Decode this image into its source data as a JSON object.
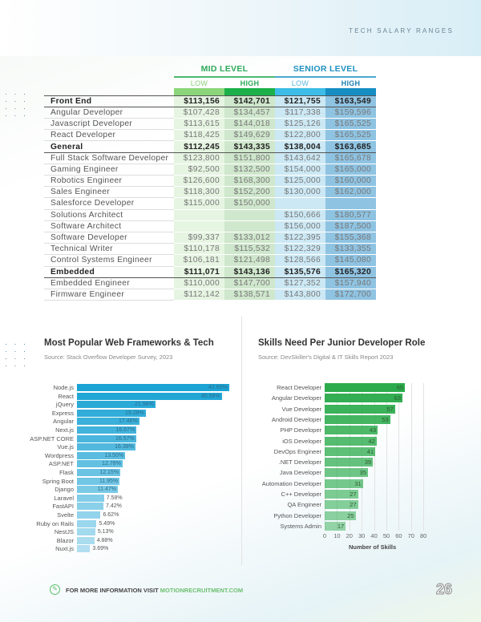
{
  "header": {
    "section": "TECH SALARY RANGES"
  },
  "table": {
    "groups": [
      "MID LEVEL",
      "SENIOR LEVEL"
    ],
    "subheaders": [
      "LOW",
      "HIGH",
      "LOW",
      "HIGH"
    ],
    "rows": [
      {
        "label": "Front End",
        "cat": true,
        "v": [
          "$113,156",
          "$142,701",
          "$121,755",
          "$163,549"
        ]
      },
      {
        "label": "Angular Developer",
        "v": [
          "$107,428",
          "$134,457",
          "$117,338",
          "$159,596"
        ]
      },
      {
        "label": "Javascript Developer",
        "v": [
          "$113,615",
          "$144,018",
          "$125,126",
          "$165,525"
        ]
      },
      {
        "label": "React Developer",
        "v": [
          "$118,425",
          "$149,629",
          "$122,800",
          "$165,525"
        ]
      },
      {
        "label": "General",
        "cat": true,
        "v": [
          "$112,245",
          "$143,335",
          "$138,004",
          "$163,685"
        ]
      },
      {
        "label": "Full Stack Software Developer",
        "v": [
          "$123,800",
          "$151,800",
          "$143,642",
          "$165,678"
        ]
      },
      {
        "label": "Gaming Engineer",
        "v": [
          "$92,500",
          "$132,500",
          "$154,000",
          "$165,000"
        ]
      },
      {
        "label": "Robotics Engineer",
        "v": [
          "$126,600",
          "$168,300",
          "$125,000",
          "$160,000"
        ]
      },
      {
        "label": "Sales Engineer",
        "v": [
          "$118,300",
          "$152,200",
          "$130,000",
          "$162,000"
        ]
      },
      {
        "label": "Salesforce Developer",
        "v": [
          "$115,000",
          "$150,000",
          "",
          ""
        ]
      },
      {
        "label": "Solutions Architect",
        "v": [
          "",
          "",
          "$150,666",
          "$180,577"
        ]
      },
      {
        "label": "Software Architect",
        "v": [
          "",
          "",
          "$156,000",
          "$187,500"
        ]
      },
      {
        "label": "Software Developer",
        "v": [
          "$99,337",
          "$133,012",
          "$122,395",
          "$155,368"
        ]
      },
      {
        "label": "Technical Writer",
        "v": [
          "$110,178",
          "$115,532",
          "$122,329",
          "$133,355"
        ]
      },
      {
        "label": "Control Systems Engineer",
        "v": [
          "$106,181",
          "$121,498",
          "$128,566",
          "$145,080"
        ]
      },
      {
        "label": "Embedded",
        "cat": true,
        "v": [
          "$111,071",
          "$143,136",
          "$135,576",
          "$165,320"
        ]
      },
      {
        "label": "Embedded Engineer",
        "v": [
          "$110,000",
          "$147,700",
          "$127,352",
          "$157,940"
        ]
      },
      {
        "label": "Firmware Engineer",
        "v": [
          "$112,142",
          "$138,571",
          "$143,800",
          "$172,700"
        ]
      }
    ]
  },
  "chart_data": [
    {
      "type": "bar",
      "orientation": "horizontal",
      "title": "Most Popular Web Frameworks & Tech",
      "subtitle": "Source: Stack Overflow Developer Survey, 2023",
      "categories": [
        "Node.js",
        "React",
        "jQuery",
        "Express",
        "Angular",
        "Next.js",
        "ASP.NET CORE",
        "Vue.js",
        "Wordpress",
        "ASP.NET",
        "Flask",
        "Spring Boot",
        "Django",
        "Laravel",
        "FastAPI",
        "Svelte",
        "Ruby on Rails",
        "NestJS",
        "Blazor",
        "Nuxt.js"
      ],
      "values": [
        42.65,
        40.58,
        21.98,
        19.28,
        17.46,
        16.67,
        16.57,
        16.38,
        13.5,
        12.78,
        12.15,
        11.95,
        11.47,
        7.58,
        7.42,
        6.62,
        5.49,
        5.13,
        4.88,
        3.69
      ],
      "labels": [
        "42.65%",
        "40.58%",
        "21.98%",
        "19.28%",
        "17.46%",
        "16.67%",
        "16.57%",
        "16.38%",
        "13.50%",
        "12.78%",
        "12.15%",
        "11.95%",
        "11.47%",
        "7.58%",
        "7.42%",
        "6.62%",
        "5.49%",
        "5.13%",
        "4.88%",
        "3.69%"
      ],
      "color": "#1aa3d4"
    },
    {
      "type": "bar",
      "orientation": "horizontal",
      "title": "Skills Need Per Junior Developer Role",
      "subtitle": "Source: DevSkiller's Digital & IT Skills Report 2023",
      "categories": [
        "React Developer",
        "Angular Developer",
        "Vue Developer",
        "Android Developer",
        "PHP Developer",
        "iOS Developer",
        "DevOps Engineer",
        ".NET Developer",
        "Java Developer",
        "Automation Developer",
        "C++ Developer",
        "QA Engineer",
        "Python Developer",
        "Systems Admin"
      ],
      "values": [
        65,
        63,
        57,
        53,
        43,
        42,
        41,
        39,
        35,
        31,
        27,
        27,
        25,
        17
      ],
      "xlabel": "Number of Skills",
      "xlim": [
        0,
        80
      ],
      "xticks": [
        "0",
        "10",
        "20",
        "30",
        "40",
        "50",
        "60",
        "70",
        "80"
      ],
      "color": "#2bab4c"
    }
  ],
  "footer": {
    "text": "FOR MORE INFORMATION VISIT ",
    "link": "MOTIONRECRUITMENT.COM",
    "page": "26"
  }
}
